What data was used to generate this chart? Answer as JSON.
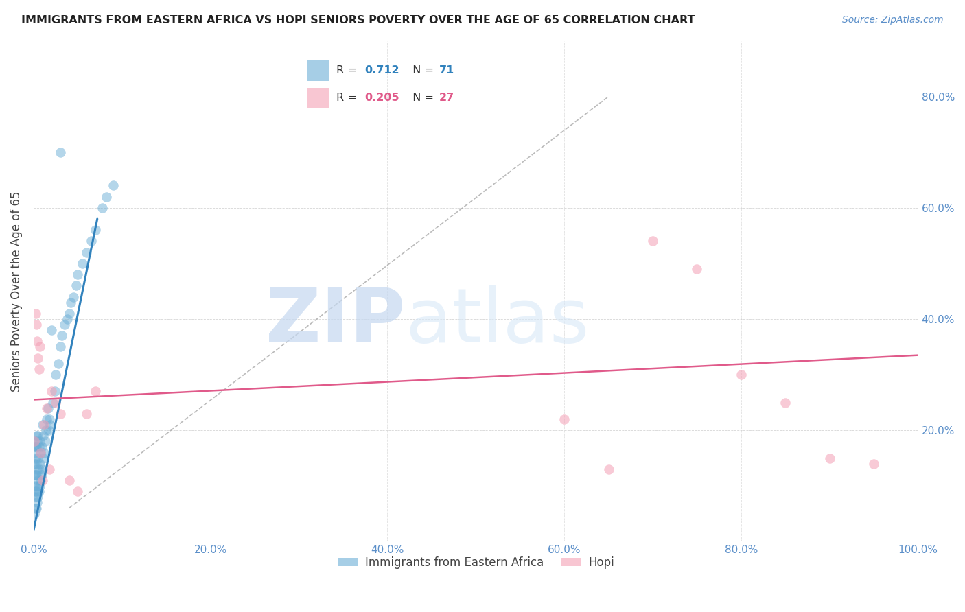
{
  "title": "IMMIGRANTS FROM EASTERN AFRICA VS HOPI SENIORS POVERTY OVER THE AGE OF 65 CORRELATION CHART",
  "source": "Source: ZipAtlas.com",
  "ylabel": "Seniors Poverty Over the Age of 65",
  "xlim": [
    0.0,
    1.0
  ],
  "ylim": [
    0.0,
    0.9
  ],
  "xticks": [
    0.0,
    0.2,
    0.4,
    0.6,
    0.8,
    1.0
  ],
  "yticks": [
    0.0,
    0.2,
    0.4,
    0.6,
    0.8
  ],
  "xtick_labels": [
    "0.0%",
    "20.0%",
    "40.0%",
    "60.0%",
    "80.0%",
    "100.0%"
  ],
  "ytick_labels_right": [
    "",
    "20.0%",
    "40.0%",
    "60.0%",
    "80.0%"
  ],
  "watermark_zip": "ZIP",
  "watermark_atlas": "atlas",
  "blue_color": "#6baed6",
  "pink_color": "#f4a0b5",
  "blue_line_color": "#3182bd",
  "pink_line_color": "#e05a8a",
  "blue_r": "0.712",
  "blue_n": "71",
  "pink_r": "0.205",
  "pink_n": "27",
  "blue_scatter_x": [
    0.001,
    0.001,
    0.001,
    0.001,
    0.001,
    0.001,
    0.001,
    0.001,
    0.002,
    0.002,
    0.002,
    0.002,
    0.002,
    0.003,
    0.003,
    0.003,
    0.003,
    0.003,
    0.003,
    0.004,
    0.004,
    0.004,
    0.004,
    0.005,
    0.005,
    0.005,
    0.005,
    0.006,
    0.006,
    0.006,
    0.007,
    0.007,
    0.007,
    0.008,
    0.008,
    0.009,
    0.009,
    0.01,
    0.01,
    0.011,
    0.011,
    0.012,
    0.013,
    0.014,
    0.015,
    0.016,
    0.017,
    0.018,
    0.019,
    0.02,
    0.022,
    0.024,
    0.025,
    0.028,
    0.03,
    0.032,
    0.035,
    0.038,
    0.04,
    0.042,
    0.045,
    0.048,
    0.05,
    0.055,
    0.06,
    0.065,
    0.07,
    0.078,
    0.082,
    0.09,
    0.03
  ],
  "blue_scatter_y": [
    0.05,
    0.08,
    0.1,
    0.12,
    0.14,
    0.16,
    0.17,
    0.18,
    0.06,
    0.09,
    0.12,
    0.15,
    0.17,
    0.06,
    0.09,
    0.12,
    0.14,
    0.17,
    0.19,
    0.07,
    0.1,
    0.13,
    0.18,
    0.08,
    0.11,
    0.15,
    0.19,
    0.09,
    0.13,
    0.17,
    0.1,
    0.14,
    0.18,
    0.11,
    0.16,
    0.12,
    0.17,
    0.13,
    0.21,
    0.15,
    0.19,
    0.16,
    0.18,
    0.2,
    0.22,
    0.24,
    0.2,
    0.22,
    0.21,
    0.38,
    0.25,
    0.27,
    0.3,
    0.32,
    0.35,
    0.37,
    0.39,
    0.4,
    0.41,
    0.43,
    0.44,
    0.46,
    0.48,
    0.5,
    0.52,
    0.54,
    0.56,
    0.6,
    0.62,
    0.64,
    0.7
  ],
  "pink_scatter_x": [
    0.001,
    0.002,
    0.003,
    0.004,
    0.005,
    0.006,
    0.007,
    0.008,
    0.01,
    0.012,
    0.015,
    0.018,
    0.02,
    0.025,
    0.03,
    0.04,
    0.05,
    0.06,
    0.07,
    0.6,
    0.65,
    0.7,
    0.75,
    0.8,
    0.85,
    0.9,
    0.95
  ],
  "pink_scatter_y": [
    0.18,
    0.41,
    0.39,
    0.36,
    0.33,
    0.31,
    0.35,
    0.16,
    0.11,
    0.21,
    0.24,
    0.13,
    0.27,
    0.25,
    0.23,
    0.11,
    0.09,
    0.23,
    0.27,
    0.22,
    0.13,
    0.54,
    0.49,
    0.3,
    0.25,
    0.15,
    0.14
  ],
  "blue_line_x": [
    0.0,
    0.072
  ],
  "blue_line_y": [
    0.02,
    0.58
  ],
  "pink_line_x": [
    0.0,
    1.0
  ],
  "pink_line_y": [
    0.255,
    0.335
  ],
  "diag_line_x": [
    0.04,
    0.65
  ],
  "diag_line_y": [
    0.06,
    0.8
  ]
}
